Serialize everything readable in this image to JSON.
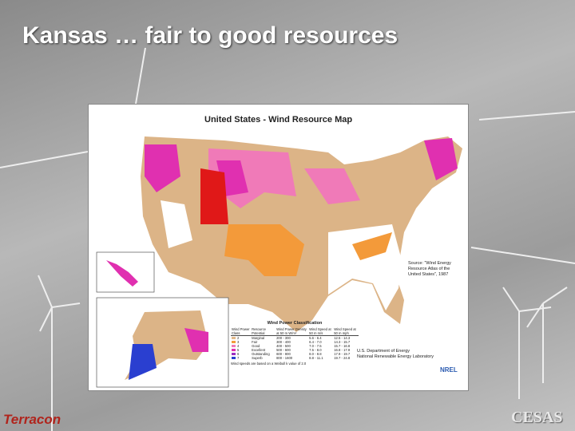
{
  "slide": {
    "title": "Kansas … fair to good resources",
    "logo_left": "Terracon",
    "logo_right": "CESAS"
  },
  "map": {
    "title": "United States - Wind Resource Map",
    "source": "Source: \"Wind Energy Resource Atlas of the United States\", 1987",
    "agency": [
      "U.S. Department of Energy",
      "National Renewable Energy Laboratory"
    ],
    "agency_logo": "NREL"
  },
  "legend": {
    "title": "Wind Power Classification",
    "headers": [
      "Wind Power Class",
      "Resource Potential",
      "Wind Power Density at 50 m W/m²",
      "Wind Speed at 50 m m/s",
      "Wind Speed at 50 m mph"
    ],
    "rows": [
      [
        "2",
        "Marginal",
        "200 - 300",
        "5.6 - 6.4",
        "12.5 - 14.3"
      ],
      [
        "3",
        "Fair",
        "300 - 400",
        "6.4 - 7.0",
        "14.3 - 15.7"
      ],
      [
        "4",
        "Good",
        "400 - 500",
        "7.0 - 7.5",
        "15.7 - 16.8"
      ],
      [
        "5",
        "Excellent",
        "500 - 600",
        "7.5 - 8.0",
        "16.8 - 17.9"
      ],
      [
        "6",
        "Outstanding",
        "600 - 800",
        "8.0 - 8.8",
        "17.9 - 19.7"
      ],
      [
        "7",
        "Superb",
        "800 - 1600",
        "8.8 - 11.1",
        "19.7 - 24.8"
      ]
    ],
    "colors": [
      "#e2b98a",
      "#f39a3a",
      "#f07ab8",
      "#e030b0",
      "#9b2fc0",
      "#2a3fd0"
    ],
    "footnote": "Wind speeds are based on a Weibull k value of 2.0"
  }
}
